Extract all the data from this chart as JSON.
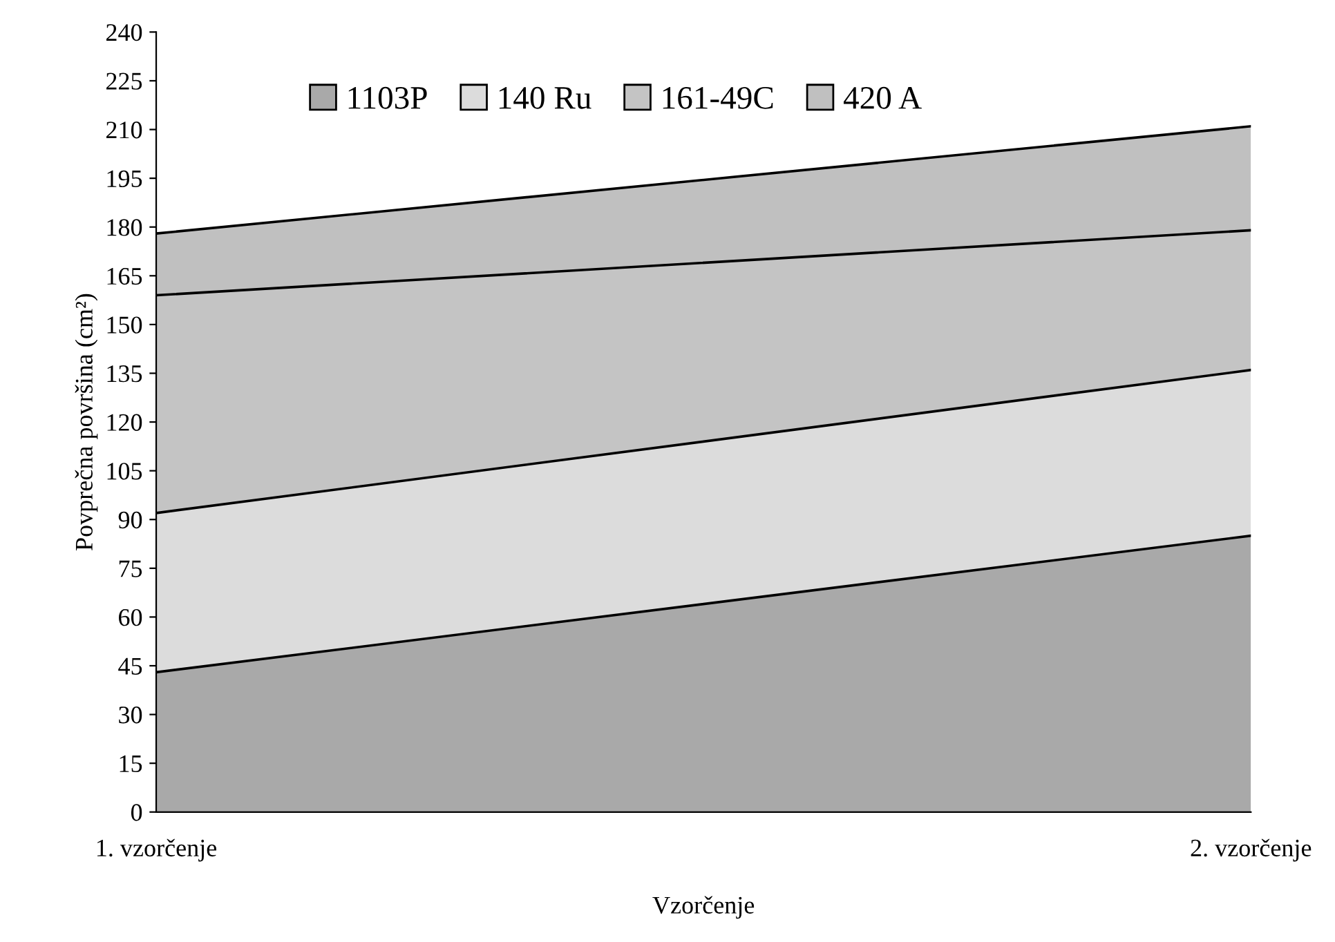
{
  "chart_data": {
    "type": "area",
    "stacked": true,
    "xlabel": "Vzorčenje",
    "ylabel": "Povprečna površina (cm²)",
    "categories": [
      "1. vzorčenje",
      "2. vzorčenje"
    ],
    "series": [
      {
        "name": "1103P",
        "color": "#a9a9a9",
        "values": [
          43,
          85
        ]
      },
      {
        "name": "140 Ru",
        "color": "#dcdcdc",
        "values": [
          49,
          51
        ]
      },
      {
        "name": "161-49C",
        "color": "#c4c4c4",
        "values": [
          67,
          43
        ]
      },
      {
        "name": "420 A",
        "color": "#c0c0c0",
        "values": [
          19,
          32
        ]
      }
    ],
    "ylim": [
      0,
      240
    ],
    "yticks": [
      0,
      15,
      30,
      45,
      60,
      75,
      90,
      105,
      120,
      135,
      150,
      165,
      180,
      195,
      210,
      225,
      240
    ],
    "grid": false,
    "legend": "top"
  }
}
